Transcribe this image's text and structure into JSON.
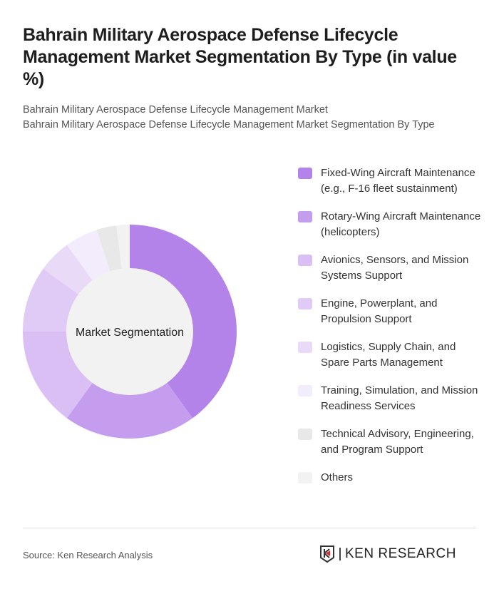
{
  "header": {
    "title": "Bahrain Military Aerospace Defense Lifecycle Management Market Segmentation By Type (in value %)",
    "subtitle1": "Bahrain Military Aerospace Defense Lifecycle Management Market",
    "subtitle2": "Bahrain Military Aerospace Defense Lifecycle Management Market Segmentation By Type"
  },
  "chart_data": {
    "type": "pie",
    "variant": "donut",
    "center_label": "Market Segmentation",
    "categories": [
      "Fixed-Wing Aircraft Maintenance (e.g., F-16 fleet sustainment)",
      "Rotary-Wing Aircraft Maintenance (helicopters)",
      "Avionics, Sensors, and Mission Systems Support",
      "Engine, Powerplant, and Propulsion Support",
      "Logistics, Supply Chain, and Spare Parts Management",
      "Training, Simulation, and Mission Readiness Services",
      "Technical Advisory, Engineering, and Program Support",
      "Others"
    ],
    "values": [
      40,
      20,
      15,
      10,
      5,
      5,
      3,
      2
    ],
    "colors": [
      "#b383e9",
      "#c59dee",
      "#d9bff4",
      "#e0cbf6",
      "#e9daf8",
      "#f3ecfc",
      "#e8e8e8",
      "#f2f2f2"
    ],
    "legend_position": "right"
  },
  "footer": {
    "source": "Source: Ken Research Analysis",
    "logo_text": "KEN RESEARCH"
  }
}
